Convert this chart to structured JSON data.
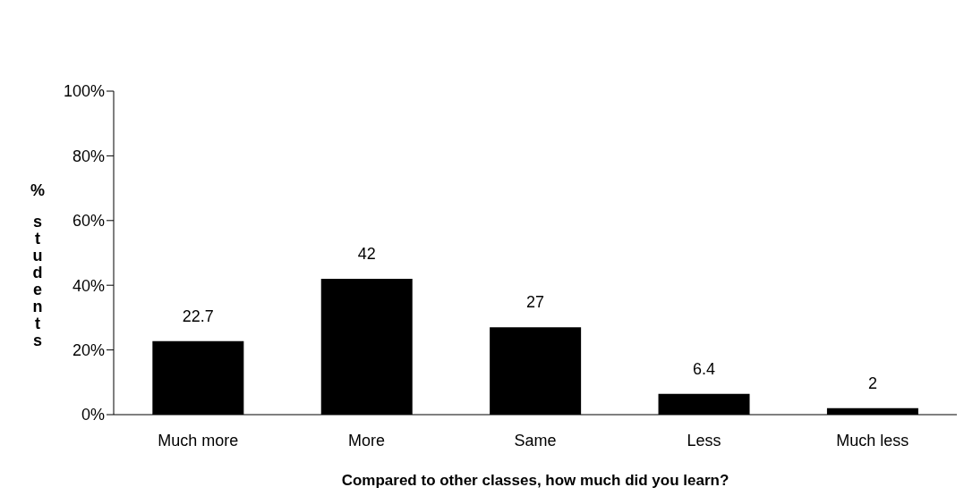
{
  "chart_data": {
    "type": "bar",
    "xlabel": "Compared to other classes, how much did you learn?",
    "ylabel": "% students",
    "categories": [
      "Much more",
      "More",
      "Same",
      "Less",
      "Much less"
    ],
    "values": [
      22.7,
      42,
      27,
      6.4,
      2
    ],
    "color": "#000000",
    "data_labels": true,
    "ylim": [
      0,
      100
    ],
    "yticks": [
      {
        "value": 0,
        "label": "0%"
      },
      {
        "value": 20,
        "label": "20%"
      },
      {
        "value": 40,
        "label": "40%"
      },
      {
        "value": 60,
        "label": "60%"
      },
      {
        "value": 80,
        "label": "80%"
      },
      {
        "value": 100,
        "label": "100%"
      }
    ],
    "grid": false,
    "legend": false
  }
}
